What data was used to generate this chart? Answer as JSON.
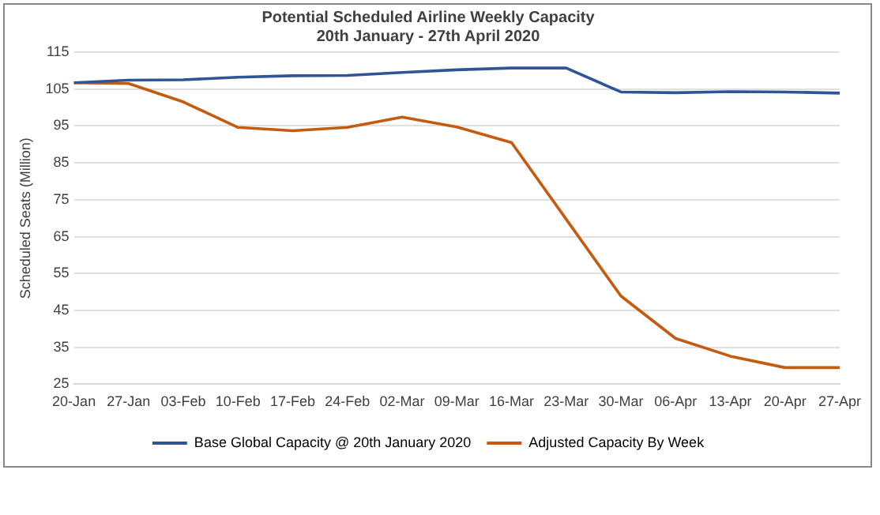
{
  "chart_data": {
    "type": "line",
    "title": "Potential Scheduled Airline Weekly Capacity",
    "subtitle": "20th January - 27th April 2020",
    "ylabel": "Scheduled Seats (Million)",
    "categories": [
      "20-Jan",
      "27-Jan",
      "03-Feb",
      "10-Feb",
      "17-Feb",
      "24-Feb",
      "02-Mar",
      "09-Mar",
      "16-Mar",
      "23-Mar",
      "30-Mar",
      "06-Apr",
      "13-Apr",
      "20-Apr",
      "27-Apr"
    ],
    "series": [
      {
        "name": "Base Global Capacity @ 20th January 2020",
        "color": "#2f5597",
        "values": [
          106.7,
          107.4,
          107.5,
          108.2,
          108.6,
          108.7,
          109.5,
          110.2,
          110.7,
          110.7,
          104.2,
          104,
          104.3,
          104.2,
          103.9
        ]
      },
      {
        "name": "Adjusted Capacity By Week",
        "color": "#c55a11",
        "values": [
          106.7,
          106.5,
          101.5,
          94.6,
          93.7,
          94.6,
          97.4,
          94.7,
          90.5,
          69.7,
          48.9,
          37.4,
          32.6,
          29.5,
          29.5
        ]
      }
    ],
    "ylim": [
      25,
      115
    ],
    "yticks": [
      25,
      35,
      45,
      55,
      65,
      75,
      85,
      95,
      105,
      115
    ],
    "grid": "y",
    "legend": "bottom",
    "marker": "none",
    "line_style": "solid"
  }
}
